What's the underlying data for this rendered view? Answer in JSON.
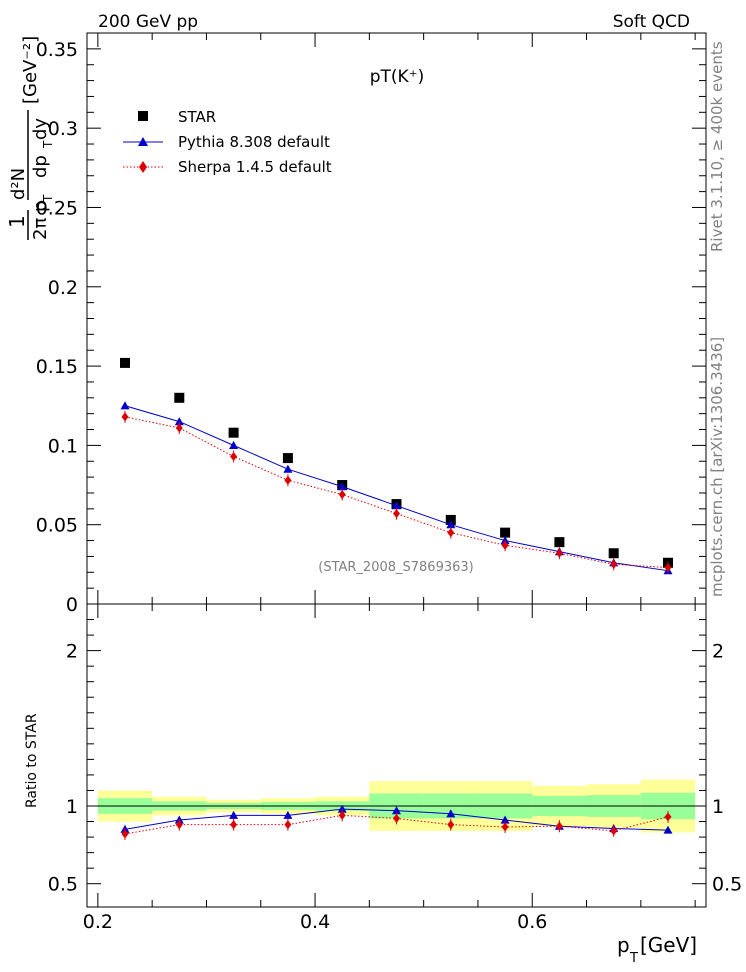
{
  "header": {
    "left": "200 GeV pp",
    "right": "Soft QCD"
  },
  "side_labels": {
    "rivet": "Rivet 3.1.10, ≥ 400k events",
    "mcplots": "mcplots.cern.ch [arXiv:1306.3436]"
  },
  "chart_data": [
    {
      "type": "scatter",
      "title": "pT(K⁺)",
      "watermark": "(STAR_2008_S7869363)",
      "ylabel_parts": {
        "one": "1",
        "two_pi": "2π p",
        "sub_t": "T",
        "d2n": "d²N",
        "dpt_dy": "dp",
        "dy": " dy",
        "unit": "[GeV⁻²]"
      },
      "xlim": [
        0.19,
        0.76
      ],
      "ylim": [
        0,
        0.36
      ],
      "yticks": [
        0,
        0.05,
        0.1,
        0.15,
        0.2,
        0.25,
        0.3,
        0.35
      ],
      "ytick_labels": [
        "0",
        "0.05",
        "0.1",
        "0.15",
        "0.2",
        "0.25",
        "0.3",
        "0.35"
      ],
      "legend_position": "top-left",
      "series": [
        {
          "name": "STAR",
          "marker": "square",
          "color": "#000000",
          "x": [
            0.225,
            0.275,
            0.325,
            0.375,
            0.425,
            0.475,
            0.525,
            0.575,
            0.625,
            0.675,
            0.725
          ],
          "y": [
            0.152,
            0.13,
            0.108,
            0.092,
            0.075,
            0.063,
            0.053,
            0.045,
            0.039,
            0.032,
            0.026
          ]
        },
        {
          "name": "Pythia 8.308 default",
          "marker": "triangle",
          "color": "#0000cc",
          "x": [
            0.225,
            0.275,
            0.325,
            0.375,
            0.425,
            0.475,
            0.525,
            0.575,
            0.625,
            0.675,
            0.725
          ],
          "y": [
            0.125,
            0.115,
            0.1,
            0.085,
            0.074,
            0.062,
            0.05,
            0.04,
            0.033,
            0.026,
            0.021
          ]
        },
        {
          "name": "Sherpa 1.4.5 default",
          "marker": "diamond",
          "color": "#dd0000",
          "x": [
            0.225,
            0.275,
            0.325,
            0.375,
            0.425,
            0.475,
            0.525,
            0.575,
            0.625,
            0.675,
            0.725
          ],
          "y": [
            0.118,
            0.111,
            0.093,
            0.078,
            0.069,
            0.057,
            0.045,
            0.037,
            0.032,
            0.025,
            0.023
          ]
        }
      ]
    },
    {
      "type": "scatter",
      "ylabel": "Ratio to STAR",
      "xlabel_main": "p",
      "xlabel_sub": "T",
      "xlabel_unit": " [GeV]",
      "xlim": [
        0.19,
        0.76
      ],
      "ylim": [
        0.35,
        2.3
      ],
      "xticks": [
        0.2,
        0.4,
        0.6
      ],
      "xtick_labels": [
        "0.2",
        "0.4",
        "0.6"
      ],
      "yticks": [
        0.5,
        1,
        2
      ],
      "ytick_labels": [
        "0.5",
        "1",
        "2"
      ],
      "bands": {
        "x_low": [
          0.2,
          0.25,
          0.3,
          0.35,
          0.4,
          0.45,
          0.5,
          0.55,
          0.6,
          0.65,
          0.7
        ],
        "x_high": [
          0.25,
          0.3,
          0.35,
          0.4,
          0.45,
          0.5,
          0.55,
          0.6,
          0.65,
          0.7,
          0.75
        ],
        "yellow_lo": [
          0.9,
          0.94,
          0.96,
          0.95,
          0.94,
          0.84,
          0.84,
          0.84,
          0.87,
          0.86,
          0.83
        ],
        "yellow_hi": [
          1.1,
          1.06,
          1.04,
          1.05,
          1.06,
          1.16,
          1.16,
          1.16,
          1.13,
          1.14,
          1.17
        ],
        "green_lo": [
          0.95,
          0.97,
          0.98,
          0.975,
          0.97,
          0.92,
          0.92,
          0.92,
          0.935,
          0.93,
          0.915
        ],
        "green_hi": [
          1.05,
          1.03,
          1.02,
          1.025,
          1.03,
          1.08,
          1.08,
          1.08,
          1.065,
          1.07,
          1.085
        ],
        "yellow_color": "#ffff99",
        "green_color": "#99ff99"
      },
      "series": [
        {
          "name": "Pythia 8.308 default",
          "marker": "triangle",
          "color": "#0000cc",
          "x": [
            0.225,
            0.275,
            0.325,
            0.375,
            0.425,
            0.475,
            0.525,
            0.575,
            0.625,
            0.675,
            0.725
          ],
          "y": [
            0.85,
            0.91,
            0.94,
            0.94,
            0.98,
            0.97,
            0.95,
            0.91,
            0.87,
            0.855,
            0.845
          ]
        },
        {
          "name": "Sherpa 1.4.5 default",
          "marker": "diamond",
          "color": "#dd0000",
          "x": [
            0.225,
            0.275,
            0.325,
            0.375,
            0.425,
            0.475,
            0.525,
            0.575,
            0.625,
            0.675,
            0.725
          ],
          "y": [
            0.82,
            0.88,
            0.88,
            0.88,
            0.94,
            0.92,
            0.88,
            0.865,
            0.87,
            0.84,
            0.93
          ]
        }
      ]
    }
  ]
}
